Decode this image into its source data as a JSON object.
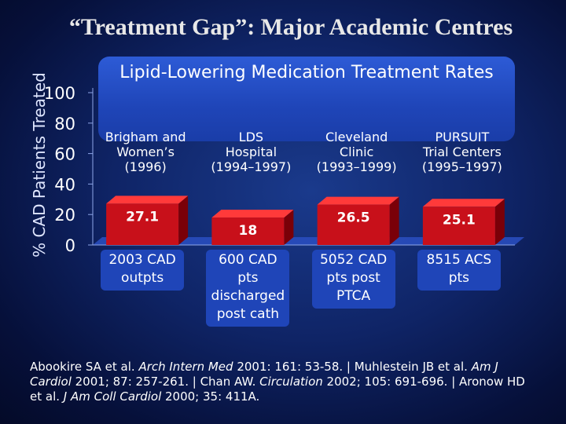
{
  "slide": {
    "title": "“Treatment Gap”: Major Academic Centres",
    "header": "Lipid-Lowering Medication Treatment Rates"
  },
  "chart_data": {
    "type": "bar",
    "ylabel": "% CAD Patients Treated",
    "ylim": [
      0,
      100
    ],
    "yticks": [
      "0",
      "20",
      "40",
      "60",
      "80",
      "100"
    ],
    "categories": [
      "Brigham and Women’s (1996)",
      "LDS Hospital (1994–1997)",
      "Cleveland Clinic (1993–1999)",
      "PURSUIT Trial Centers (1995–1997)"
    ],
    "category_lines": [
      [
        "Brigham and",
        "Women’s",
        "(1996)"
      ],
      [
        "LDS",
        "Hospital",
        "(1994–1997)"
      ],
      [
        "Cleveland",
        "Clinic",
        "(1993–1999)"
      ],
      [
        "PURSUIT",
        "Trial Centers",
        "(1995–1997)"
      ]
    ],
    "values": [
      27.1,
      18,
      26.5,
      25.1
    ],
    "value_labels": [
      "27.1",
      "18",
      "26.5",
      "25.1"
    ],
    "notes": [
      [
        "2003 CAD",
        "outpts"
      ],
      [
        "600 CAD",
        "pts",
        "discharged",
        "post cath"
      ],
      [
        "5052 CAD",
        "pts post",
        "PTCA"
      ],
      [
        "8515 ACS",
        "pts"
      ]
    ],
    "colors": {
      "bar": "#c8101a",
      "bar_top": "#ff3a3a",
      "bar_side": "#7a0008",
      "header": "#2d5bd6"
    }
  },
  "references": {
    "p1": "Abookire SA et al. ",
    "j1": "Arch Intern Med",
    "p2": " 2001: 161: 53-58. | Muhlestein JB et al. ",
    "j2": "Am J Cardiol",
    "p3": " 2001; 87: 257-261. | Chan AW. ",
    "j3": "Circulation",
    "p4": " 2002; 105: 691-696. | Aronow HD et al. ",
    "j4": "J Am Coll Cardiol",
    "p5": " 2000; 35: 411A."
  }
}
